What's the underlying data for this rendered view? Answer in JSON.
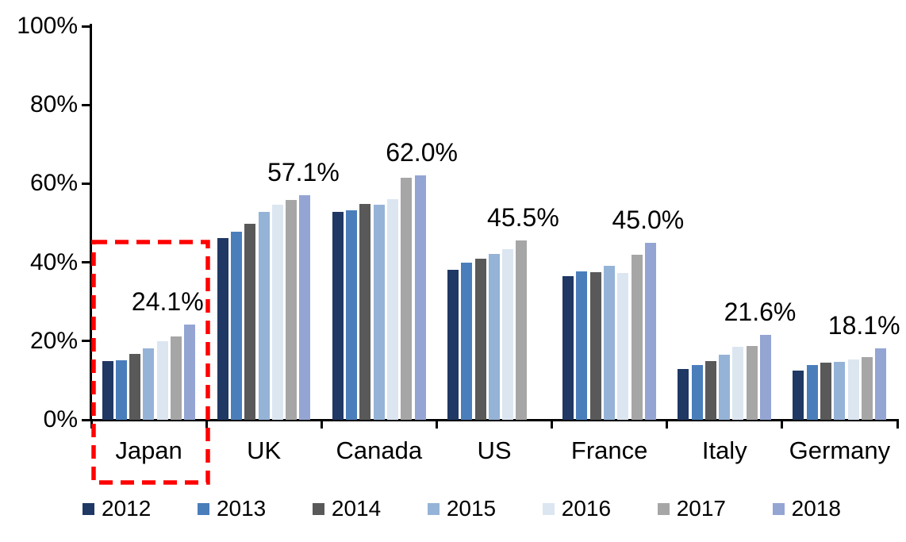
{
  "chart_data": {
    "type": "bar",
    "title": "",
    "xlabel": "",
    "ylabel": "",
    "unit": "%",
    "grid": false,
    "legend_position": "bottom",
    "y_axis": {
      "min": 0,
      "max": 100,
      "tick_values": [
        0,
        20,
        40,
        60,
        80,
        100
      ],
      "tick_labels": [
        "0%",
        "20%",
        "40%",
        "60%",
        "80%",
        "100%"
      ]
    },
    "categories": [
      "Japan",
      "UK",
      "Canada",
      "US",
      "France",
      "Italy",
      "Germany"
    ],
    "series": [
      {
        "name": "2012",
        "color": "#1F3864",
        "values": [
          14.9,
          46.2,
          52.8,
          38.2,
          36.5,
          13.0,
          12.5
        ]
      },
      {
        "name": "2013",
        "color": "#4A7EBB",
        "values": [
          15.1,
          47.7,
          53.3,
          40.0,
          37.7,
          14.0,
          13.9
        ]
      },
      {
        "name": "2014",
        "color": "#595959",
        "values": [
          16.7,
          49.8,
          54.9,
          41.0,
          37.5,
          15.0,
          14.5
        ]
      },
      {
        "name": "2015",
        "color": "#95B3D7",
        "values": [
          18.2,
          52.9,
          54.6,
          42.1,
          39.1,
          16.6,
          14.8
        ]
      },
      {
        "name": "2016",
        "color": "#DCE6F1",
        "values": [
          20.0,
          54.7,
          56.1,
          43.4,
          37.3,
          18.6,
          15.4
        ]
      },
      {
        "name": "2017",
        "color": "#A6A6A6",
        "values": [
          21.1,
          55.9,
          61.5,
          45.5,
          42.0,
          18.8,
          16.0
        ]
      },
      {
        "name": "2018",
        "color": "#94A5D4",
        "values": [
          24.1,
          57.1,
          62.0,
          null,
          45.0,
          21.6,
          18.1
        ]
      }
    ],
    "value_labels": [
      {
        "category": "Japan",
        "text": "24.1%",
        "dx": -28
      },
      {
        "category": "UK",
        "text": "57.1%",
        "dx": -2
      },
      {
        "category": "Canada",
        "text": "62.0%",
        "dx": 2
      },
      {
        "category": "US",
        "text": "45.5%",
        "dx": 2
      },
      {
        "category": "France",
        "text": "45.0%",
        "dx": -3
      },
      {
        "category": "Italy",
        "text": "21.6%",
        "dx": -7
      },
      {
        "category": "Germany",
        "text": "18.1%",
        "dx": -21
      }
    ],
    "annotations": {
      "highlight_box": {
        "target": "Japan",
        "color": "#FF0000",
        "style": "dashed"
      }
    }
  }
}
